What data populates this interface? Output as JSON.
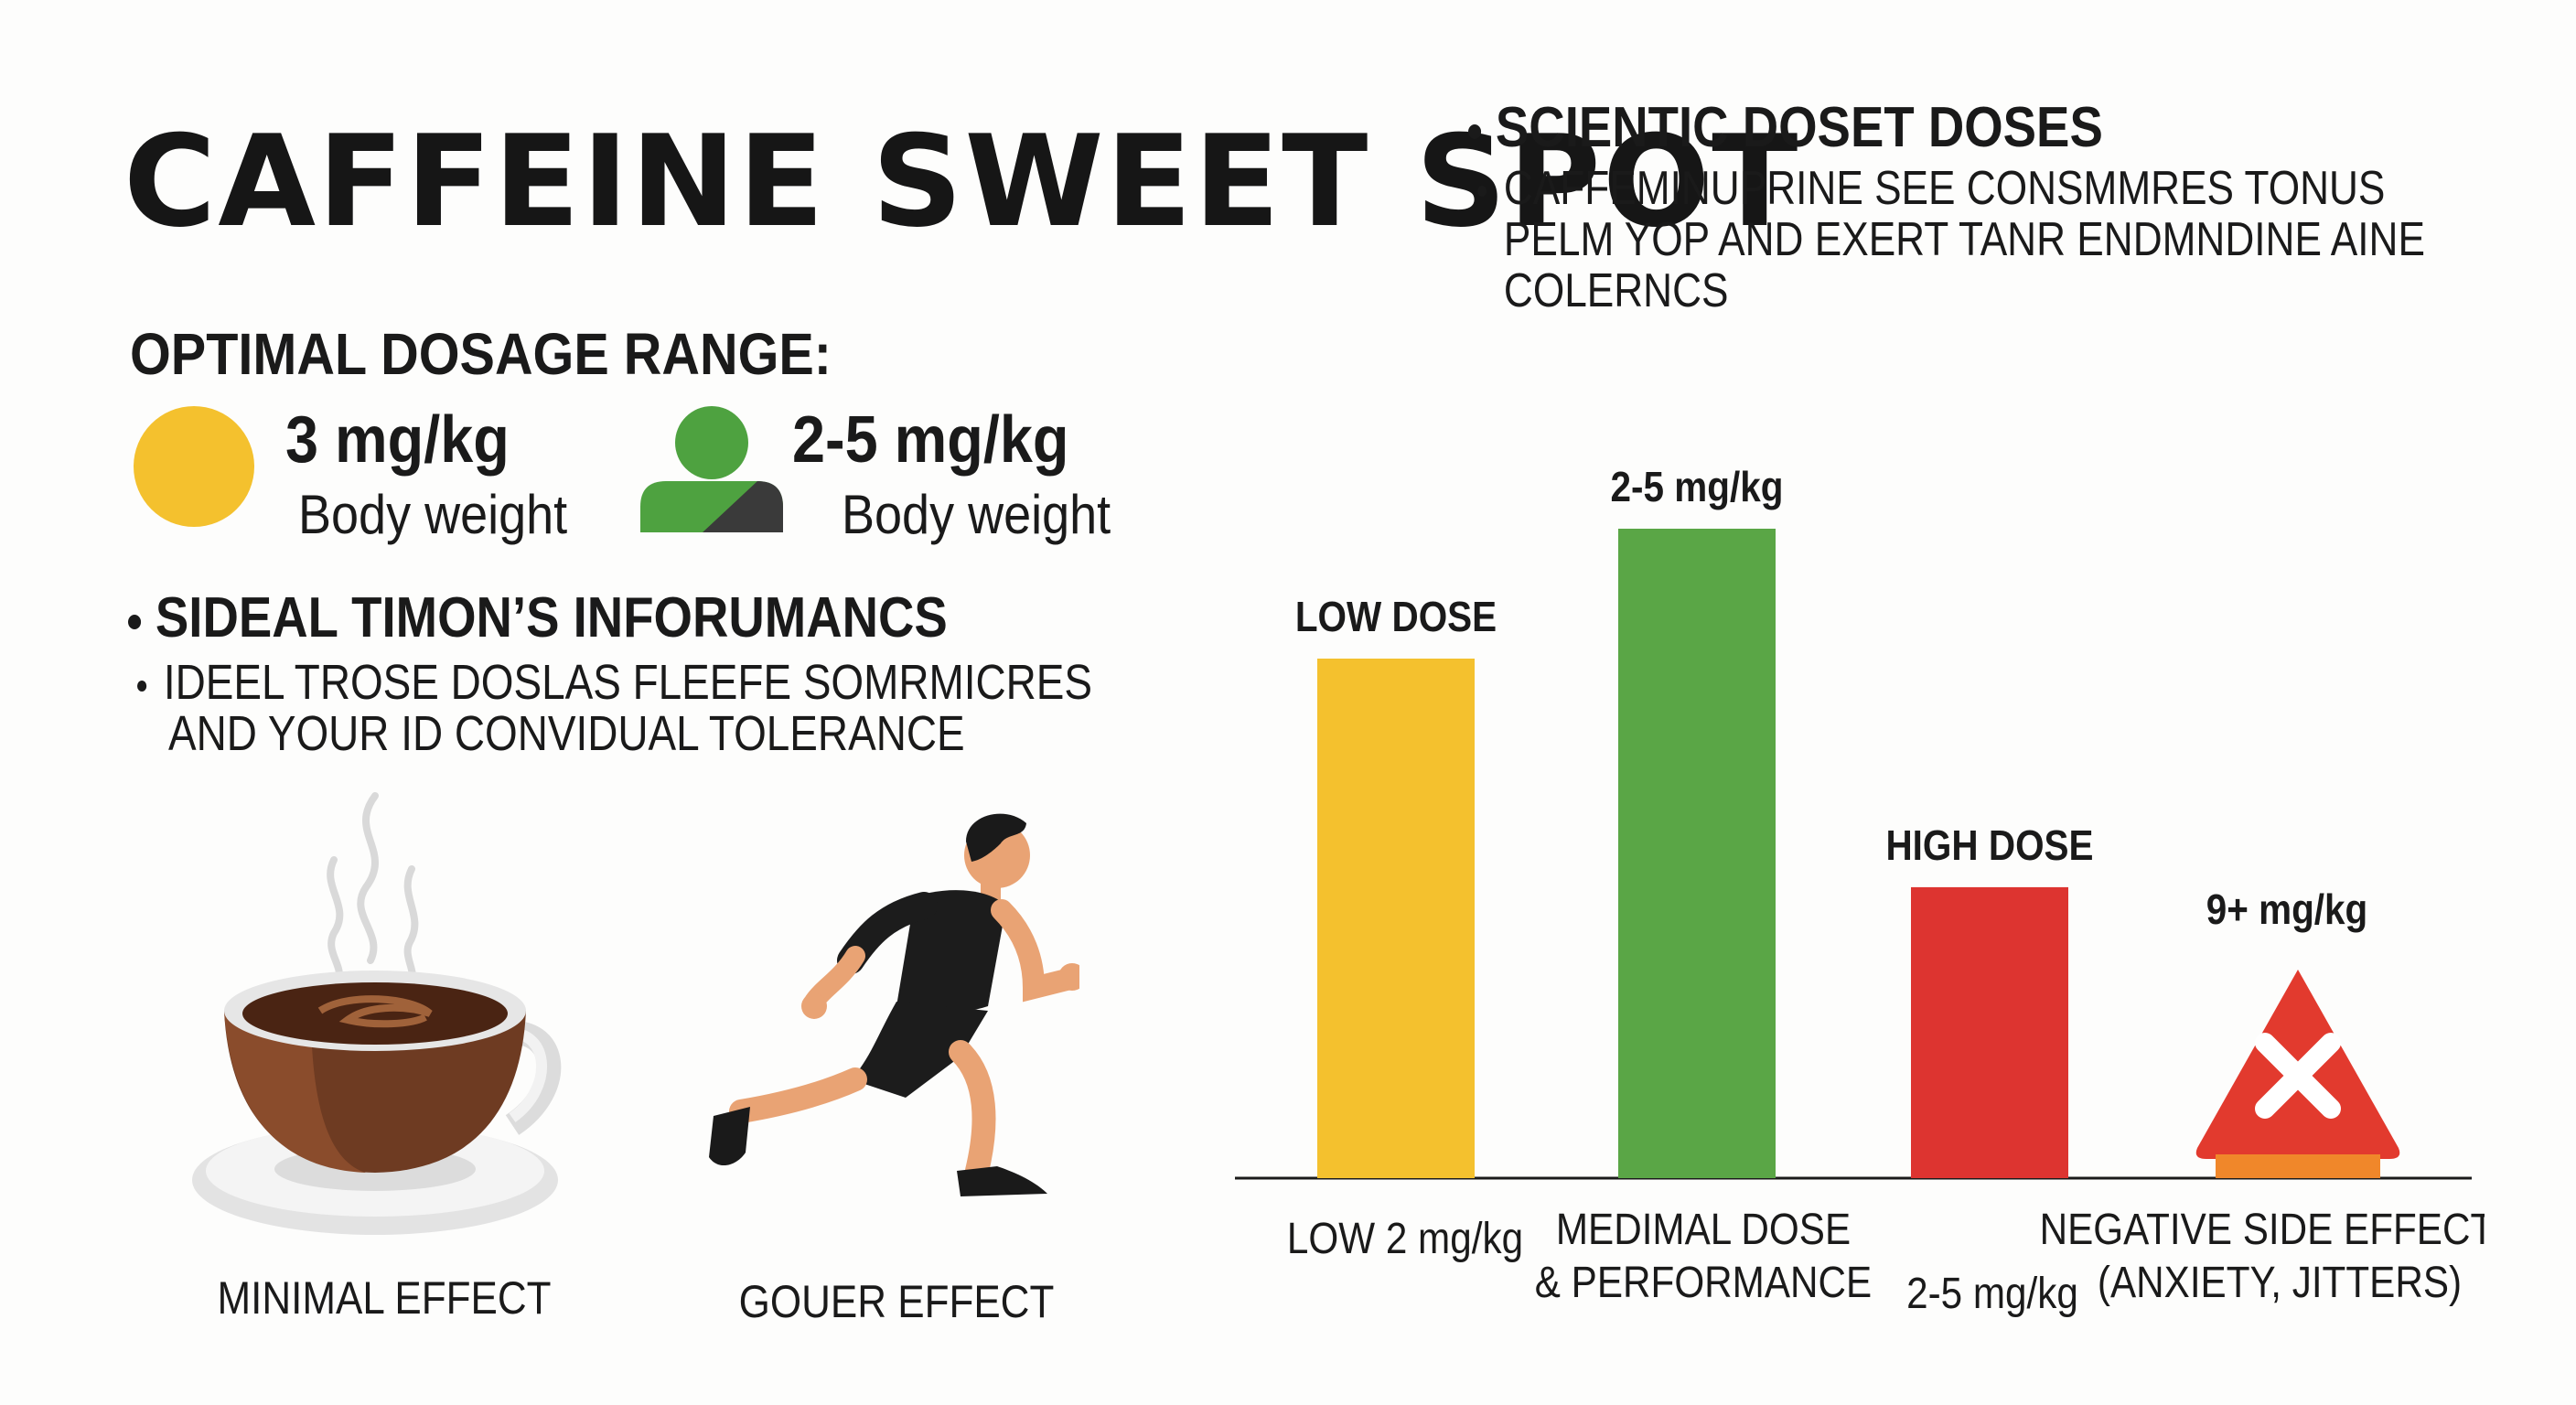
{
  "title": "CAFFEINE SWEET SPOT",
  "scientific": {
    "heading": "SCIENTIC DOSET DOSES",
    "lines": [
      "CAFFEMINUPRINE SEE CONSMMRES TONUS",
      "PELM YOP AND EXERT TANR ENDMNDINE AINE",
      "COLERNCS"
    ]
  },
  "optimal": {
    "heading": "OPTIMAL DOSAGE RANGE:",
    "items": [
      {
        "value": "3 mg/kg",
        "sub": "Body weight",
        "icon": "yellow-circle-icon",
        "color": "#f4c12e"
      },
      {
        "value": "2-5 mg/kg",
        "sub": "Body weight",
        "icon": "person-icon",
        "color": "#4ea240"
      }
    ]
  },
  "ideal": {
    "heading": "SIDEAL TIMON’S INFORUMANCS",
    "lines": [
      "IDEEL TROSE DOSLAS FLEEFE SOMRMICRES",
      "AND YOUR ID CONVIDUAL TOLERANCE"
    ]
  },
  "illustrations": {
    "coffee_caption": "MINIMAL EFFECT",
    "runner_caption": "GOUER EFFECT"
  },
  "chart_data": {
    "type": "bar",
    "categories": [
      "LOW DOSE",
      "2-5 mg/kg",
      "HIGH DOSE",
      "9+ mg/kg"
    ],
    "values": [
      100,
      125,
      56,
      0
    ],
    "value_note_unit": "relative bar height",
    "top_labels": [
      "LOW DOSE",
      "2-5 mg/kg",
      "HIGH DOSE",
      "9+ mg/kg"
    ],
    "axis_labels": [
      [
        "LOW 2 mg/kg"
      ],
      [
        "MEDIMAL DOSE",
        "& PERFORMANCE"
      ],
      [
        "2-5 mg/kg"
      ],
      [
        "NEGATIVE SIDE EFFECTS",
        "(ANXIETY, JITTERS)"
      ]
    ],
    "colors": [
      "#f4c12e",
      "#5aa646",
      "#dd3430",
      "#e23a2e"
    ],
    "ylim": [
      0,
      125
    ],
    "grid": false,
    "warning_icon": "warning-x-icon"
  }
}
